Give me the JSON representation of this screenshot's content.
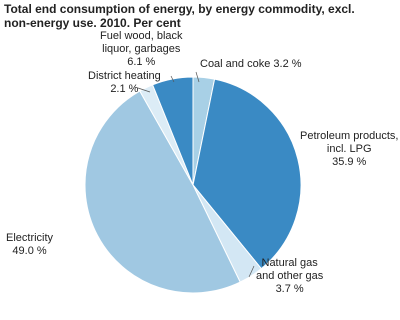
{
  "chart_data": {
    "type": "pie",
    "title": "Total end consumption of energy, by energy commodity, excl. non-energy use. 2010. Per cent",
    "categories": [
      "Coal and coke",
      "Petroleum products,\nincl. LPG",
      "Natural gas\nand other gas",
      "Electricity",
      "District heating",
      "Fuel wood, black\nliquor, garbages"
    ],
    "values": [
      3.2,
      35.9,
      3.7,
      49.0,
      2.1,
      6.1
    ],
    "value_labels": [
      "3.2 %",
      "35.9 %",
      "3.7 %",
      "49.0 %",
      "2.1 %",
      "6.1 %"
    ],
    "colors": [
      "#a8d0e6",
      "#3a8ac4",
      "#d3e7f4",
      "#a0c8e2",
      "#dcecf6",
      "#3a8ac4"
    ]
  }
}
